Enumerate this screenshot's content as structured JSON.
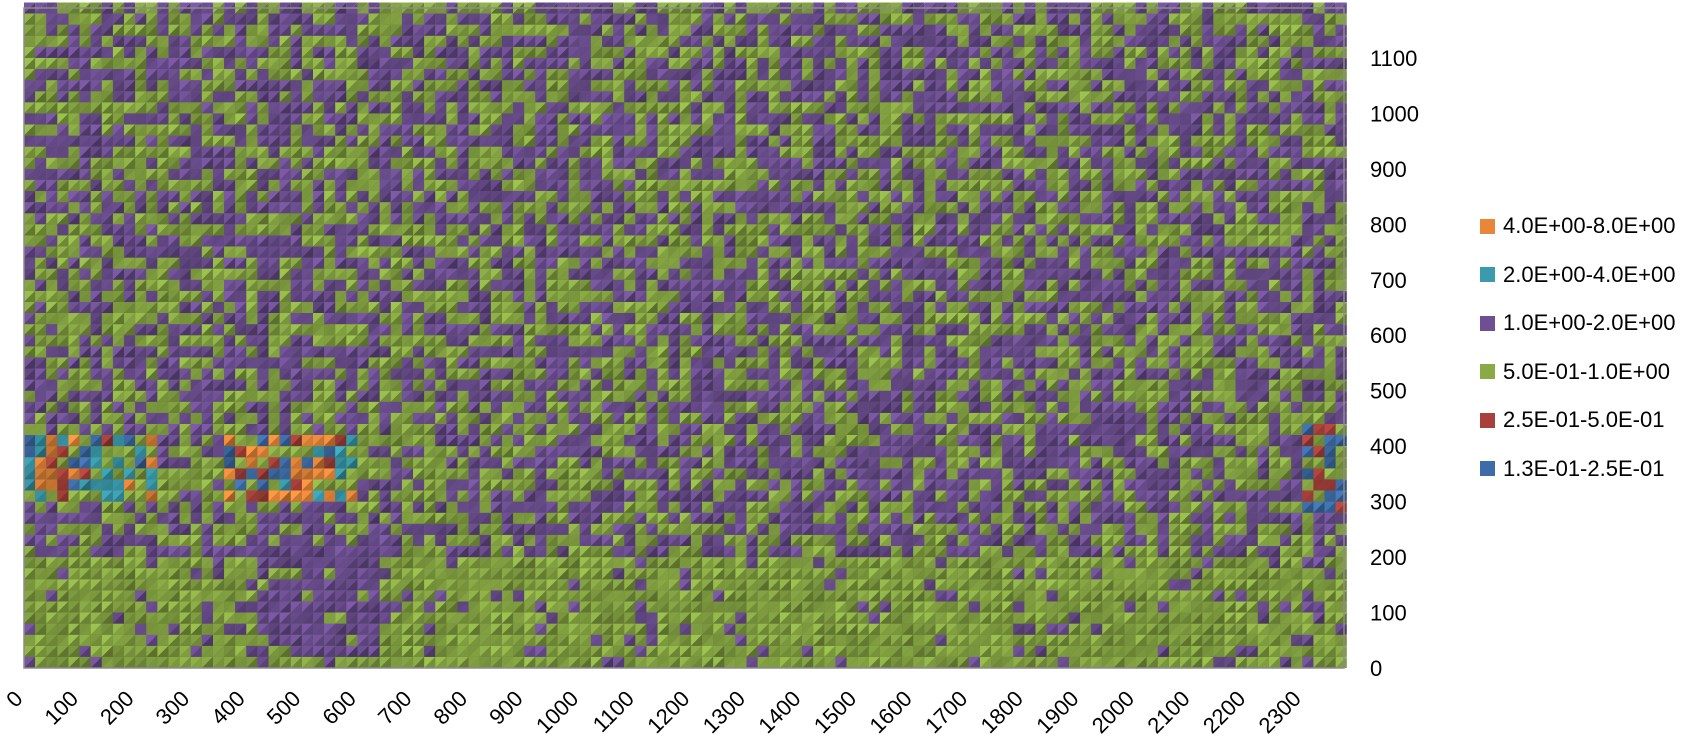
{
  "chart_data": {
    "type": "heatmap",
    "title": "",
    "xlabel": "",
    "ylabel": "",
    "xlim": [
      0,
      2375
    ],
    "ylim": [
      0,
      1190
    ],
    "x_ticks": [
      "0",
      "100",
      "200",
      "300",
      "400",
      "500",
      "600",
      "700",
      "800",
      "900",
      "1000",
      "1100",
      "1200",
      "1300",
      "1400",
      "1500",
      "1600",
      "1700",
      "1800",
      "1900",
      "2000",
      "2100",
      "2200",
      "2300"
    ],
    "y_ticks": [
      "0",
      "100",
      "200",
      "300",
      "400",
      "500",
      "600",
      "700",
      "800",
      "900",
      "1000",
      "1100"
    ],
    "y_axis_side": "right",
    "legend": [
      {
        "label": "4.0E+00-8.0E+00",
        "color": "#E8873A"
      },
      {
        "label": "2.0E+00-4.0E+00",
        "color": "#3A9BAE"
      },
      {
        "label": "1.0E+00-2.0E+00",
        "color": "#6E4F94"
      },
      {
        "label": "5.0E-01-1.0E+00",
        "color": "#8AAA45"
      },
      {
        "label": "2.5E-01-5.0E-01",
        "color": "#A8403B"
      },
      {
        "label": "1.3E-01-2.5E-01",
        "color": "#3E6CA8"
      }
    ],
    "legend_position": "right",
    "surface": {
      "dominant_classes": [
        "1.0E+00-2.0E+00",
        "5.0E-01-1.0E+00"
      ],
      "low_band": {
        "class": "5.0E-01-1.0E+00",
        "y_range": [
          0,
          200
        ]
      },
      "mixed_zones": [
        {
          "x_range": [
            0,
            230
          ],
          "y_range": [
            300,
            420
          ],
          "classes": [
            "1.3E-01-2.5E-01",
            "2.5E-01-5.0E-01",
            "2.0E+00-4.0E+00",
            "4.0E+00-8.0E+00"
          ]
        },
        {
          "x_range": [
            370,
            600
          ],
          "y_range": [
            300,
            420
          ],
          "classes": [
            "1.3E-01-2.5E-01",
            "2.5E-01-5.0E-01",
            "2.0E+00-4.0E+00",
            "4.0E+00-8.0E+00"
          ]
        },
        {
          "x_range": [
            2310,
            2375
          ],
          "y_range": [
            280,
            430
          ],
          "classes": [
            "1.3E-01-2.5E-01",
            "2.5E-01-5.0E-01"
          ]
        }
      ],
      "blobs": [
        {
          "class": "1.0E+00-2.0E+00",
          "x_range": [
            420,
            640
          ],
          "y_range": [
            30,
            230
          ]
        }
      ]
    }
  }
}
